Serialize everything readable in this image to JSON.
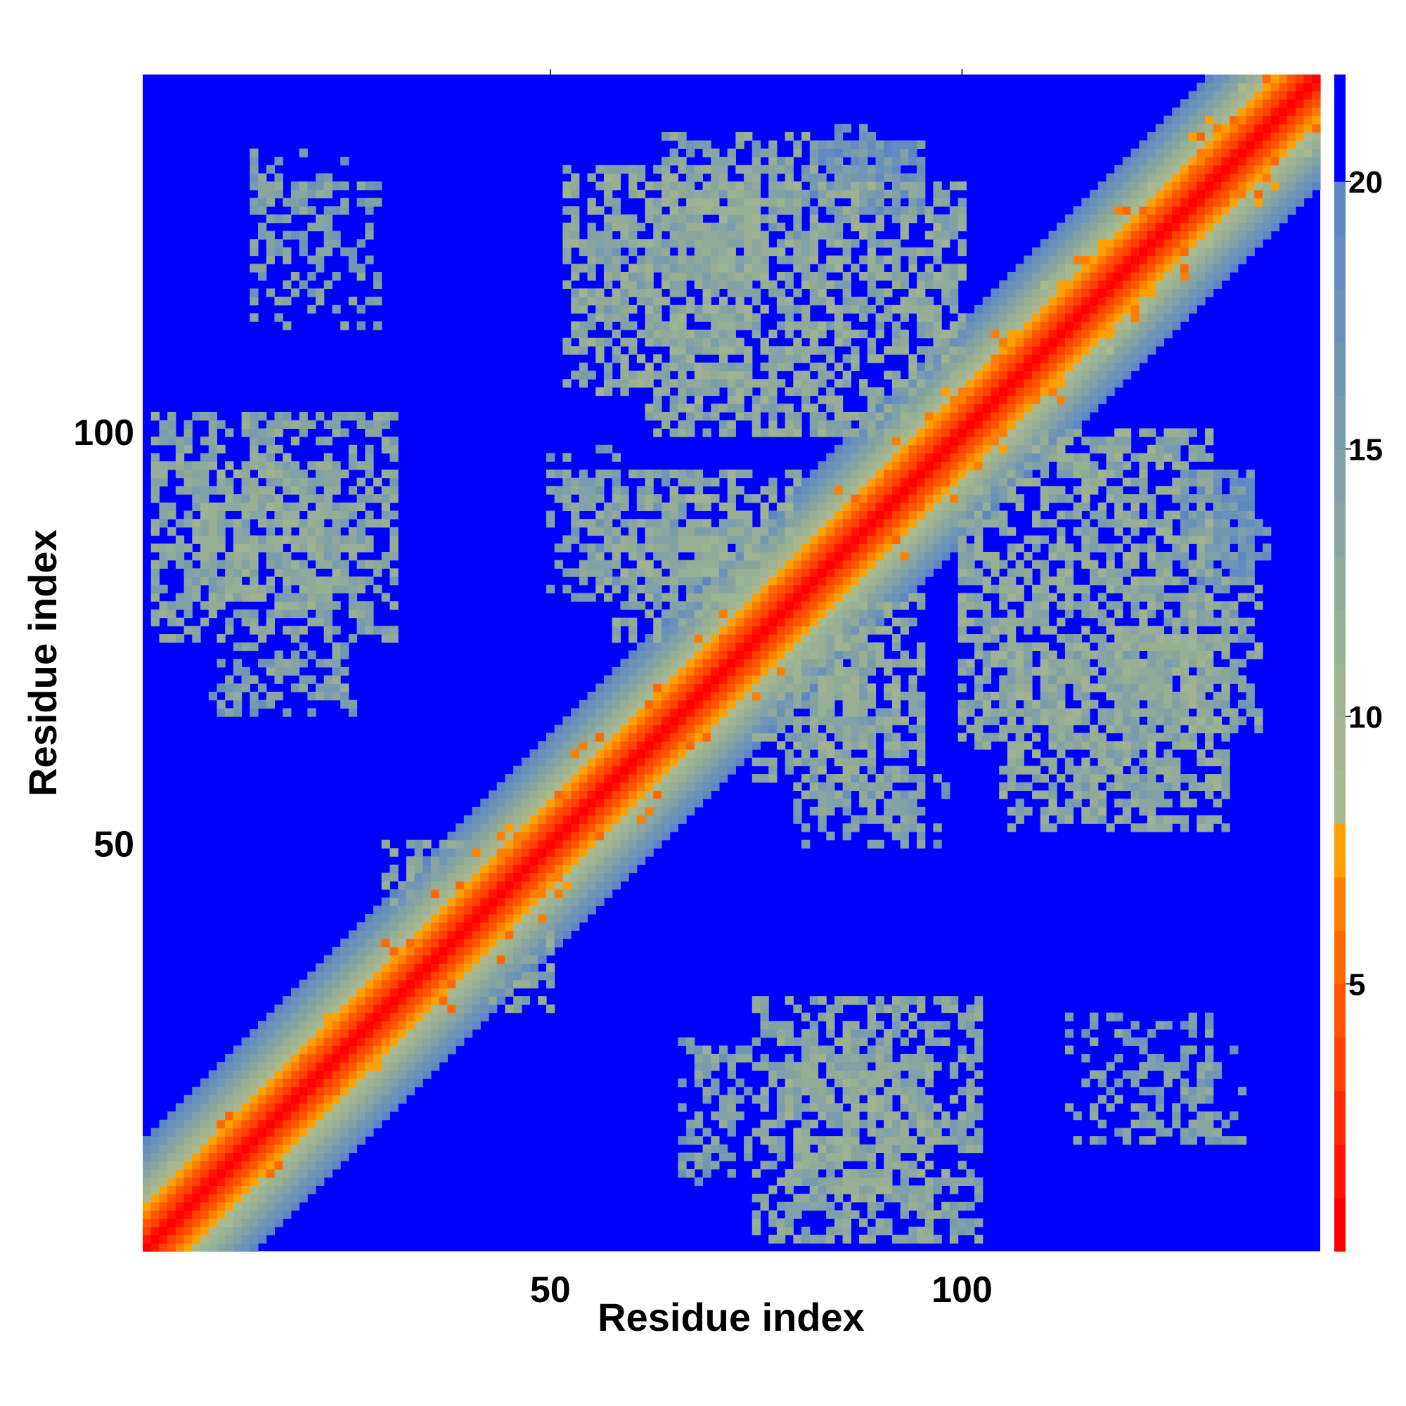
{
  "chart_data": {
    "type": "heatmap",
    "title": "",
    "xlabel": "Residue index",
    "ylabel": "Residue index",
    "n_residues": 143,
    "xlim": [
      0.5,
      143.5
    ],
    "ylim": [
      0.5,
      143.5
    ],
    "x_ticks": [
      50,
      100
    ],
    "y_ticks": [
      50,
      100
    ],
    "colorbar": {
      "range": [
        0,
        22
      ],
      "ticks": [
        5,
        10,
        15,
        20
      ],
      "levels": [
        {
          "max": 1,
          "color": "#ff0000"
        },
        {
          "max": 2,
          "color": "#ff1500"
        },
        {
          "max": 3,
          "color": "#ff2a00"
        },
        {
          "max": 4,
          "color": "#ff4000"
        },
        {
          "max": 5,
          "color": "#ff5500"
        },
        {
          "max": 6,
          "color": "#ff6a00"
        },
        {
          "max": 7,
          "color": "#ff8000"
        },
        {
          "max": 8,
          "color": "#ffa000"
        },
        {
          "max": 9,
          "color": "#a9b98f"
        },
        {
          "max": 10,
          "color": "#a3b58f"
        },
        {
          "max": 11,
          "color": "#9db391"
        },
        {
          "max": 12,
          "color": "#97b095"
        },
        {
          "max": 13,
          "color": "#90ab99"
        },
        {
          "max": 14,
          "color": "#88a69f"
        },
        {
          "max": 15,
          "color": "#80a1a6"
        },
        {
          "max": 16,
          "color": "#789cad"
        },
        {
          "max": 17,
          "color": "#7196b4"
        },
        {
          "max": 18,
          "color": "#6a91ba"
        },
        {
          "max": 19,
          "color": "#638bbf"
        },
        {
          "max": 20,
          "color": "#5d86c3"
        },
        {
          "max": 21,
          "color": "#0000ff"
        },
        {
          "max": 22,
          "color": "#0000ff"
        }
      ]
    },
    "distance_model": {
      "description": "Symmetric residue-pair distance map (Å); diagonal band values by |i-j|",
      "band_by_offset": [
        0,
        2,
        3.5,
        5,
        6.5,
        7.5,
        9,
        10.5,
        12,
        13.5,
        15,
        16.5,
        18,
        19.5
      ],
      "beyond_band": 21,
      "contact_patches": [
        {
          "i": [
            2,
            31
          ],
          "j": [
            75,
            102
          ],
          "level": 13.5,
          "density": 0.55
        },
        {
          "i": [
            14,
            25
          ],
          "j": [
            122,
            134
          ],
          "level": 15,
          "density": 0.3
        },
        {
          "i": [
            9,
            26
          ],
          "j": [
            66,
            72
          ],
          "level": 15.5,
          "density": 0.4
        },
        {
          "i": [
            52,
            75
          ],
          "j": [
            105,
            132
          ],
          "level": 13,
          "density": 0.55
        },
        {
          "i": [
            64,
            82
          ],
          "j": [
            120,
            136
          ],
          "level": 14,
          "density": 0.5
        },
        {
          "i": [
            82,
            95
          ],
          "j": [
            127,
            135
          ],
          "level": 17,
          "density": 0.75
        },
        {
          "i": [
            52,
            65
          ],
          "j": [
            80,
            95
          ],
          "level": 14,
          "density": 0.45
        },
        {
          "i": [
            65,
            80
          ],
          "j": [
            80,
            95
          ],
          "level": 13,
          "density": 0.55
        },
        {
          "i": [
            75,
            92
          ],
          "j": [
            58,
            75
          ],
          "level": 13,
          "density": 0.45
        },
        {
          "i": [
            80,
            98
          ],
          "j": [
            50,
            58
          ],
          "level": 15,
          "density": 0.35
        },
        {
          "i": [
            100,
            130
          ],
          "j": [
            62,
            100
          ],
          "level": 13,
          "density": 0.55
        },
        {
          "i": [
            127,
            137
          ],
          "j": [
            84,
            90
          ],
          "level": 17,
          "density": 0.7
        },
        {
          "i": [
            112,
            125
          ],
          "j": [
            55,
            63
          ],
          "level": 15,
          "density": 0.35
        },
        {
          "i": [
            68,
            74
          ],
          "j": [
            12,
            25
          ],
          "level": 14,
          "density": 0.4
        },
        {
          "i": [
            79,
            96
          ],
          "j": [
            6,
            24
          ],
          "level": 13,
          "density": 0.5
        },
        {
          "i": [
            113,
            130
          ],
          "j": [
            14,
            29
          ],
          "level": 15,
          "density": 0.3
        },
        {
          "i": [
            30,
            40
          ],
          "j": [
            43,
            50
          ],
          "level": 14,
          "density": 0.5
        },
        {
          "i": [
            38,
            45
          ],
          "j": [
            38,
            47
          ],
          "level": 14,
          "density": 0.4
        }
      ]
    }
  }
}
